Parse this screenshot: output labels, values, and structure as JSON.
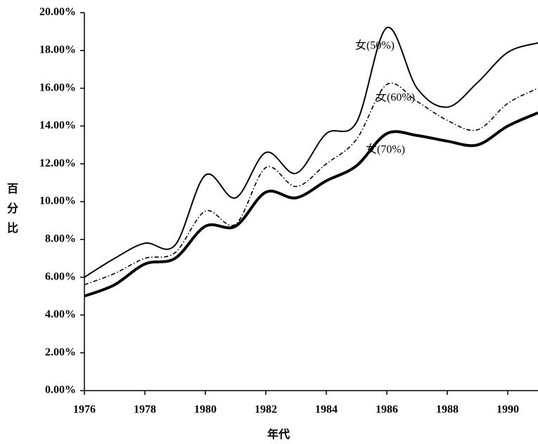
{
  "chart_data": {
    "type": "line",
    "x_label": "年代",
    "y_label": "百分比",
    "x": [
      1976,
      1977,
      1978,
      1979,
      1980,
      1981,
      1982,
      1983,
      1984,
      1985,
      1986,
      1987,
      1988,
      1989,
      1990,
      1991
    ],
    "series": [
      {
        "name": "女(50%)",
        "color": "#000000",
        "style": "solid",
        "width": 2,
        "values": [
          6.0,
          7.0,
          7.8,
          7.7,
          11.4,
          10.2,
          12.6,
          11.5,
          13.6,
          14.2,
          19.2,
          16.0,
          15.0,
          16.3,
          17.9,
          18.4
        ]
      },
      {
        "name": "女(60%)",
        "color": "#000000",
        "style": "dashdot",
        "width": 1.6,
        "values": [
          5.6,
          6.2,
          7.0,
          7.3,
          9.5,
          8.8,
          11.8,
          10.8,
          12.0,
          13.3,
          16.2,
          15.3,
          14.3,
          13.8,
          15.2,
          16.0
        ]
      },
      {
        "name": "女(70%)",
        "color": "#000000",
        "style": "solid",
        "width": 4,
        "values": [
          5.0,
          5.6,
          6.7,
          7.0,
          8.7,
          8.7,
          10.5,
          10.2,
          11.1,
          11.9,
          13.6,
          13.5,
          13.2,
          13.0,
          14.0,
          14.7
        ]
      }
    ],
    "xlim": [
      1976,
      1991
    ],
    "xticks": [
      1976,
      1978,
      1980,
      1982,
      1984,
      1986,
      1988,
      1990
    ],
    "ylim": [
      0,
      20
    ],
    "yticks": [
      {
        "value": 0,
        "label": "0.00%"
      },
      {
        "value": 2,
        "label": "2.00%"
      },
      {
        "value": 4,
        "label": "4.00%"
      },
      {
        "value": 6,
        "label": "6.00%"
      },
      {
        "value": 8,
        "label": "8.00%"
      },
      {
        "value": 10,
        "label": "10.00%"
      },
      {
        "value": 12,
        "label": "12.00%"
      },
      {
        "value": 14,
        "label": "14.00%"
      },
      {
        "value": 16,
        "label": "16.00%"
      },
      {
        "value": 18,
        "label": "18.00%"
      },
      {
        "value": 20,
        "label": "20.00%"
      }
    ],
    "grid": false
  }
}
